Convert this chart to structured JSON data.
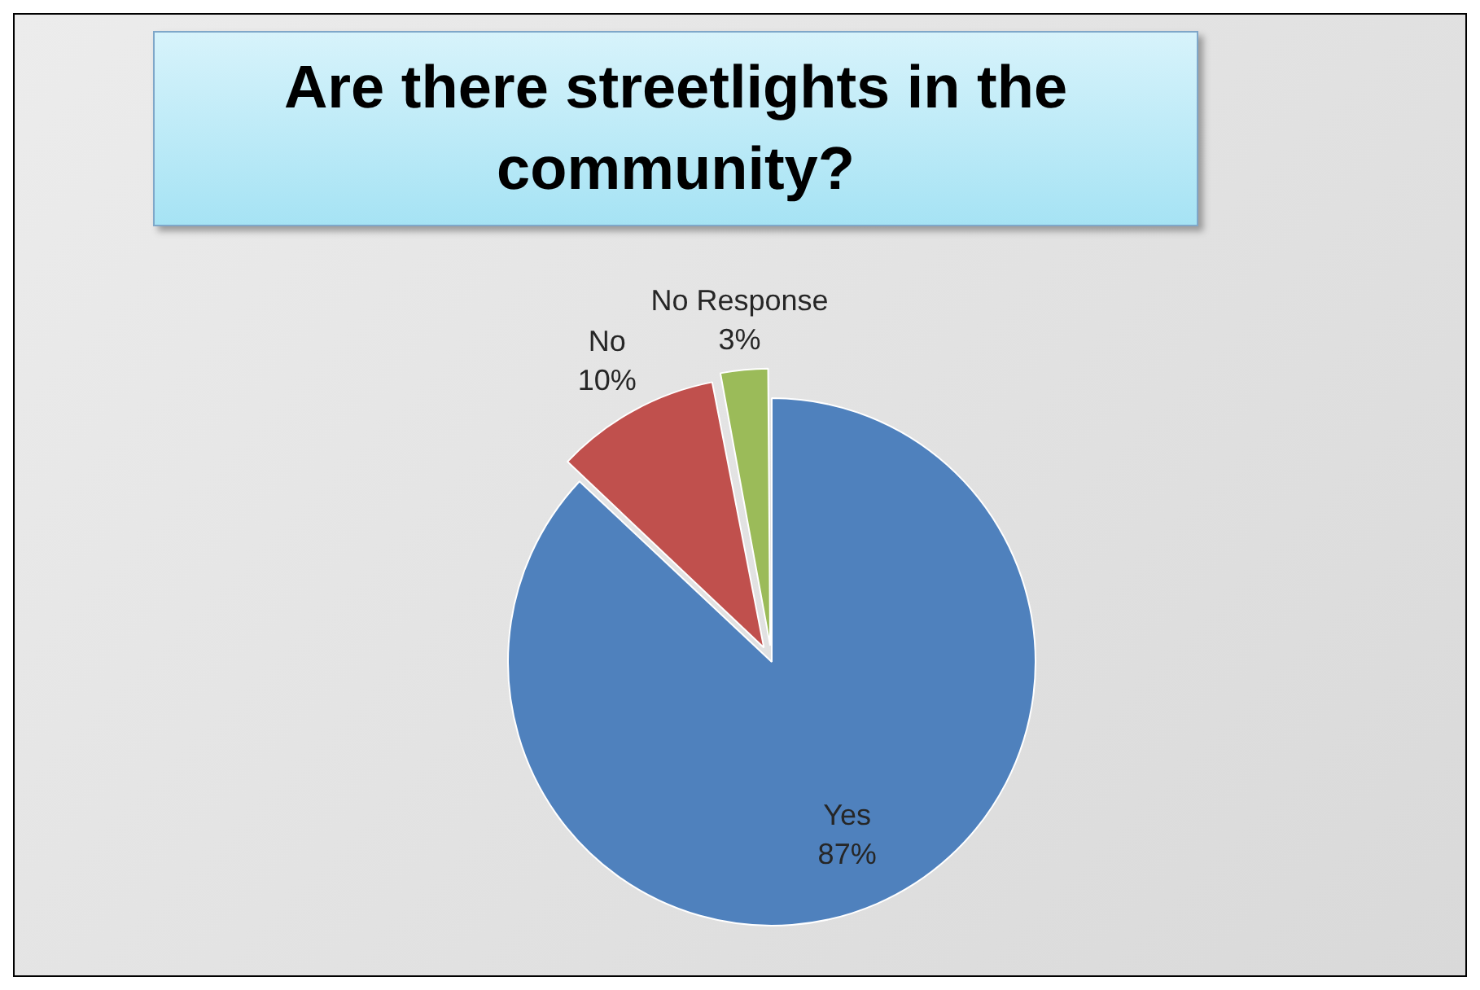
{
  "chart_data": {
    "type": "pie",
    "title": "Are there streetlights in the community?",
    "categories": [
      "Yes",
      "No",
      "No Response"
    ],
    "values": [
      87,
      10,
      3
    ],
    "value_labels": [
      "87%",
      "10%",
      "3%"
    ],
    "colors": [
      "#4f81bd",
      "#c0504d",
      "#9bbb59"
    ],
    "legend": false
  }
}
